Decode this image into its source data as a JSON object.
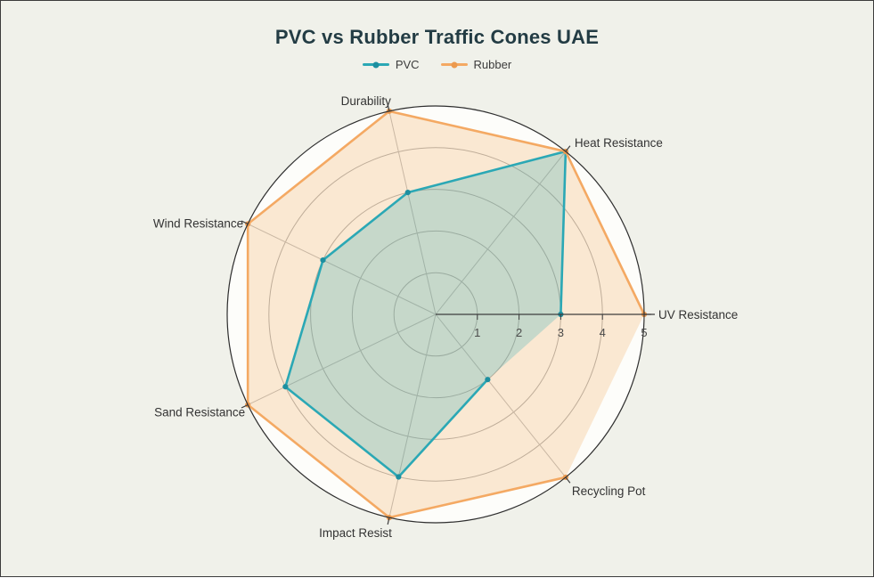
{
  "title": {
    "text": "PVC vs Rubber Traffic Cones UAE",
    "color": "#233c44"
  },
  "legend": {
    "position": "top-center",
    "items": [
      {
        "label": "PVC",
        "color": "#2BA8B5",
        "marker_color": "#1D8FA0"
      },
      {
        "label": "Rubber",
        "color": "#F4A963",
        "marker_color": "#EC9A4F"
      }
    ]
  },
  "chart_data": {
    "type": "radar",
    "title": "PVC vs Rubber Traffic Cones UAE",
    "categories": [
      "UV Resistance",
      "Heat Resistance",
      "Durability",
      "Wind Resistance",
      "Sand Resistance",
      "Impact Resist",
      "Recycling Pot"
    ],
    "series": [
      {
        "name": "PVC",
        "values": [
          3,
          5,
          3,
          3,
          4,
          4,
          2
        ],
        "line_color": "#2BA8B5",
        "marker_color": "#1D8FA0",
        "fill_color": "rgba(43,168,181,0.25)"
      },
      {
        "name": "Rubber",
        "values": [
          5,
          5,
          5,
          5,
          5,
          5,
          5
        ],
        "line_color": "#F4A963",
        "marker_color": "#EC9A4F",
        "fill_color": "rgba(246,178,107,0.28)"
      }
    ],
    "radial_axis": {
      "ticks": [
        "1",
        "2",
        "3",
        "4",
        "5"
      ],
      "range": [
        0,
        5
      ]
    },
    "angular_start_deg": 0,
    "direction": "counterclockwise",
    "closing_edge_stroked": false,
    "legend_position": "top-center",
    "grid": {
      "show": true,
      "inner_background": "#fdfdfa",
      "circle_color": "#ababab",
      "spoke_color": "#b9b9b9",
      "outer_circle_color": "#2e2e2e",
      "axis_line_color": "#3d3d3d"
    },
    "page_background": "#f0f1ea"
  }
}
